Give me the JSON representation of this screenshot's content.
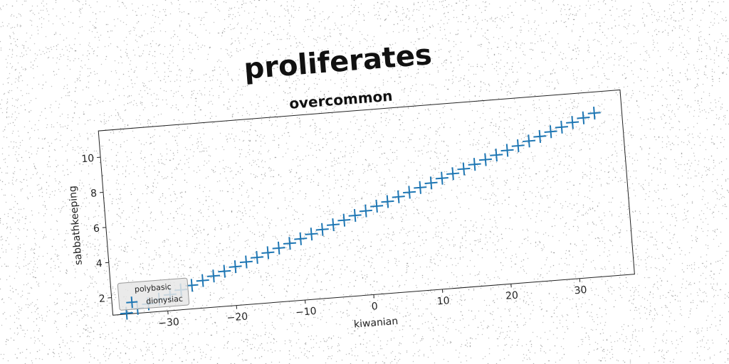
{
  "title": "proliferates",
  "subtitle": "overcommon",
  "chart_data": {
    "type": "scatter",
    "xlabel": "kiwanian",
    "ylabel": "sabbathkeeping",
    "xlim": [
      -38,
      38
    ],
    "ylim": [
      1,
      11.5
    ],
    "xticks": [
      -30,
      -20,
      -10,
      0,
      10,
      20,
      30
    ],
    "xtick_labels": [
      "−30",
      "−20",
      "−10",
      "0",
      "10",
      "20",
      "30"
    ],
    "yticks": [
      2,
      4,
      6,
      8,
      10
    ],
    "ytick_labels": [
      "2",
      "4",
      "6",
      "8",
      "10"
    ],
    "grid": false,
    "marker": "+",
    "color": "#1f77b4",
    "legend": {
      "title": "polybasic",
      "placement": "lower-left",
      "entries": [
        "dionysiac"
      ]
    },
    "series": [
      {
        "name": "dionysiac",
        "x": [
          -36,
          -34.37,
          -32.74,
          -31.12,
          -29.49,
          -27.86,
          -26.23,
          -24.6,
          -22.98,
          -21.35,
          -19.72,
          -18.09,
          -16.47,
          -14.84,
          -13.21,
          -11.58,
          -9.95,
          -8.33,
          -6.7,
          -5.07,
          -3.44,
          -1.81,
          -0.19,
          1.44,
          3.07,
          4.7,
          6.33,
          7.95,
          9.58,
          11.21,
          12.84,
          14.47,
          16.09,
          17.72,
          19.35,
          20.98,
          22.6,
          24.23,
          25.86,
          27.49,
          29.12,
          30.74,
          32.37,
          34
        ],
        "y": [
          1.05,
          1.27,
          1.48,
          1.7,
          1.91,
          2.13,
          2.34,
          2.56,
          2.77,
          2.99,
          3.2,
          3.42,
          3.63,
          3.85,
          4.06,
          4.28,
          4.49,
          4.71,
          4.92,
          5.14,
          5.35,
          5.57,
          5.78,
          6.0,
          6.21,
          6.43,
          6.64,
          6.86,
          7.07,
          7.29,
          7.5,
          7.72,
          7.93,
          8.15,
          8.36,
          8.58,
          8.79,
          9.01,
          9.22,
          9.44,
          9.65,
          9.87,
          10.08,
          10.3
        ]
      }
    ]
  }
}
